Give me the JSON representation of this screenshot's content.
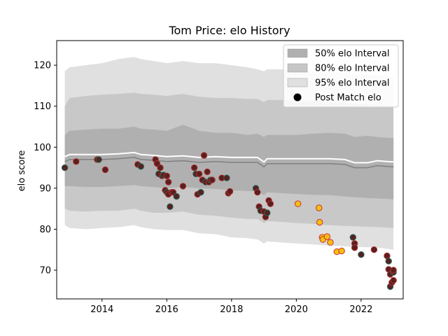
{
  "chart_data": {
    "type": "line",
    "title": "Tom Price: elo History",
    "xlabel": "",
    "ylabel": "elo score",
    "xlim": [
      2012.6,
      2023.3
    ],
    "ylim": [
      63,
      126
    ],
    "x_ticks": [
      2014,
      2016,
      2018,
      2020,
      2022
    ],
    "x_tick_labels": [
      "2014",
      "2016",
      "2018",
      "2020",
      "2022"
    ],
    "y_ticks": [
      70,
      80,
      90,
      100,
      110,
      120
    ],
    "y_tick_labels": [
      "70",
      "80",
      "90",
      "100",
      "110",
      "120"
    ],
    "grid": false,
    "legend": {
      "placement": "top-right",
      "entries": [
        {
          "label": "50% elo Interval",
          "color": "#b0b0b0"
        },
        {
          "label": "80% elo Interval",
          "color": "#c6c6c6"
        },
        {
          "label": "95% elo Interval",
          "color": "#e0e0e0"
        },
        {
          "label": "Post Match elo",
          "color": "#000000"
        }
      ]
    },
    "bands": {
      "x": [
        2012.85,
        2013.0,
        2013.5,
        2014.0,
        2014.5,
        2015.0,
        2015.2,
        2015.6,
        2016.0,
        2016.5,
        2017.0,
        2017.5,
        2018.0,
        2018.5,
        2018.8,
        2019.0,
        2019.1,
        2019.5,
        2020.0,
        2020.5,
        2021.0,
        2021.5,
        2021.8,
        2022.2,
        2022.5,
        2022.8,
        2023.0
      ],
      "mean": [
        96.5,
        97.0,
        97.0,
        97.0,
        97.2,
        97.5,
        97.0,
        96.8,
        96.5,
        96.7,
        96.3,
        96.5,
        96.3,
        96.3,
        96.3,
        95.2,
        96.0,
        96.0,
        96.0,
        96.0,
        96.0,
        95.8,
        95.0,
        95.0,
        95.5,
        95.3,
        95.2
      ],
      "p50_lo": [
        90.5,
        90.5,
        90.3,
        90.3,
        90.5,
        90.8,
        90.5,
        90.3,
        90.0,
        90.3,
        90.0,
        89.8,
        89.5,
        89.3,
        89.3,
        88.3,
        89.0,
        88.8,
        88.6,
        88.4,
        88.3,
        88.0,
        87.8,
        87.6,
        87.5,
        87.4,
        87.3
      ],
      "p50_hi": [
        103.0,
        104.0,
        104.3,
        104.5,
        104.5,
        105.0,
        104.5,
        104.3,
        104.0,
        105.5,
        104.0,
        103.5,
        103.5,
        103.0,
        103.3,
        102.5,
        103.0,
        103.0,
        103.0,
        103.3,
        103.5,
        103.3,
        102.5,
        102.8,
        102.5,
        102.3,
        102.2
      ],
      "p80_lo": [
        85.0,
        84.5,
        84.3,
        84.5,
        84.5,
        85.0,
        84.5,
        84.0,
        84.0,
        84.3,
        83.5,
        83.3,
        82.8,
        82.5,
        82.5,
        81.5,
        82.0,
        81.8,
        81.5,
        81.3,
        81.0,
        80.8,
        80.7,
        80.6,
        80.5,
        80.4,
        80.3
      ],
      "p80_hi": [
        110.0,
        112.0,
        112.5,
        112.8,
        113.0,
        113.3,
        113.0,
        112.8,
        112.5,
        113.0,
        112.3,
        112.0,
        112.0,
        111.8,
        111.8,
        111.0,
        111.5,
        111.5,
        111.3,
        111.3,
        111.0,
        110.8,
        110.5,
        110.5,
        110.3,
        110.2,
        110.0
      ],
      "p95_lo": [
        81.0,
        80.3,
        80.0,
        80.3,
        80.5,
        81.0,
        80.5,
        80.0,
        79.8,
        79.8,
        79.0,
        78.8,
        78.0,
        77.8,
        77.5,
        76.5,
        77.0,
        76.8,
        76.5,
        76.3,
        76.0,
        75.8,
        75.7,
        75.6,
        75.5,
        75.2,
        75.0
      ],
      "p95_hi": [
        118.5,
        119.5,
        120.0,
        120.5,
        121.5,
        122.0,
        121.5,
        121.0,
        120.5,
        121.0,
        120.5,
        120.5,
        120.0,
        119.5,
        119.0,
        118.5,
        119.0,
        119.0,
        118.8,
        118.5,
        118.3,
        118.0,
        117.8,
        117.8,
        117.5,
        117.3,
        117.0
      ]
    },
    "series": [
      {
        "name": "Post Match elo",
        "x": [
          2012.85,
          2013.2,
          2013.85,
          2013.9,
          2014.1,
          2015.1,
          2015.2,
          2015.65,
          2015.7,
          2015.75,
          2015.8,
          2015.85,
          2015.9,
          2015.95,
          2016.0,
          2016.0,
          2016.05,
          2016.05,
          2016.1,
          2016.15,
          2016.2,
          2016.3,
          2016.5,
          2016.85,
          2016.9,
          2016.95,
          2017.0,
          2017.05,
          2017.1,
          2017.15,
          2017.2,
          2017.25,
          2017.3,
          2017.35,
          2017.4,
          2017.7,
          2017.85,
          2017.9,
          2017.95,
          2018.75,
          2018.8,
          2018.85,
          2018.9,
          2019.0,
          2019.05,
          2019.1,
          2019.15,
          2019.2,
          2021.75,
          2021.8,
          2021.8,
          2022.0,
          2022.4,
          2022.8,
          2022.85,
          2022.85,
          2022.9,
          2022.9,
          2022.95,
          2023.0,
          2023.0,
          2023.0
        ],
        "y": [
          95.0,
          96.5,
          97.0,
          97.0,
          94.5,
          95.8,
          95.3,
          97.0,
          96.0,
          93.5,
          95.0,
          93.0,
          93.2,
          89.5,
          93.0,
          89.0,
          88.5,
          91.5,
          85.5,
          89.0,
          89.0,
          88.0,
          90.5,
          95.0,
          93.5,
          88.5,
          93.5,
          89.0,
          92.0,
          98.0,
          91.5,
          94.0,
          91.5,
          92.0,
          92.0,
          92.5,
          92.5,
          88.8,
          89.2,
          90.0,
          89.0,
          85.5,
          84.5,
          84.3,
          83.0,
          84.0,
          87.0,
          86.2,
          78.0,
          76.5,
          75.5,
          73.8,
          75.0,
          73.5,
          72.2,
          70.2,
          69.0,
          66.0,
          67.0,
          67.5,
          69.5,
          70.0
        ]
      },
      {
        "name": "Post Match elo",
        "x": [
          2020.05,
          2020.7,
          2020.72,
          2020.8,
          2020.82,
          2020.95,
          2021.05,
          2021.25,
          2021.4
        ],
        "y": [
          86.2,
          85.2,
          81.7,
          78.0,
          77.5,
          78.2,
          76.8,
          74.5,
          74.7
        ]
      }
    ],
    "colors": {
      "band_95": "#e0e0e0",
      "band_80": "#c8c8c8",
      "band_50": "#b0b0b0",
      "mean_line": "#808080",
      "mean_highlight": "#ffffff",
      "point_fill": "#5a2020",
      "point_edge_a": "#1e6b5a",
      "point_edge_b": "#b03030",
      "point_fill_recent": "#f2c010",
      "point_edge_recent": "#d03030"
    }
  }
}
